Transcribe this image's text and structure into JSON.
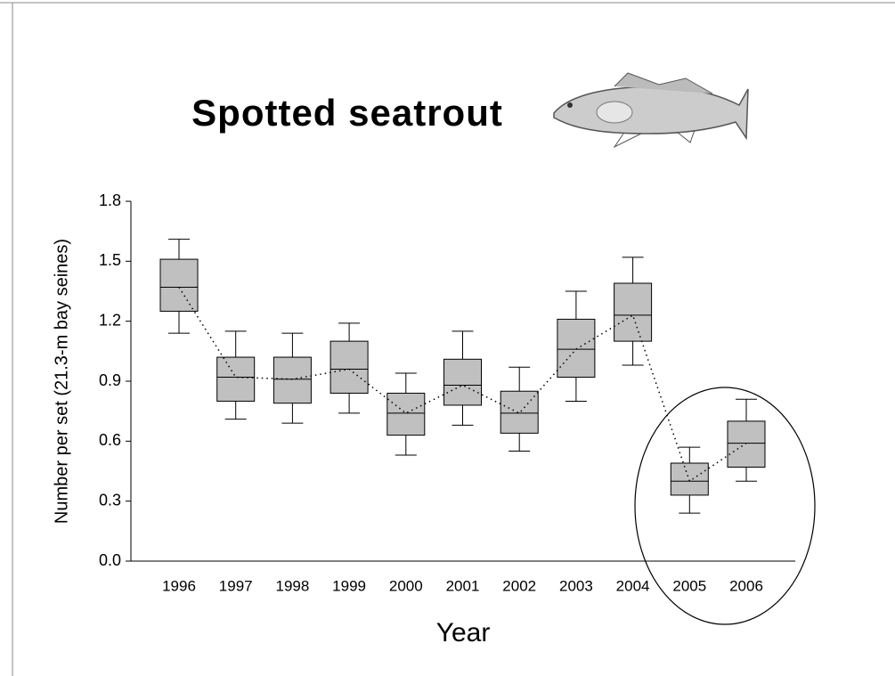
{
  "chart_data": {
    "type": "box",
    "title": "Spotted seatrout",
    "x_label": "Year",
    "y_label": "Number per set (21.3-m bay seines)",
    "categories": [
      "1996",
      "1997",
      "1998",
      "1999",
      "2000",
      "2001",
      "2002",
      "2003",
      "2004",
      "2005",
      "2006"
    ],
    "whisker_low": [
      1.14,
      0.71,
      0.69,
      0.74,
      0.53,
      0.68,
      0.55,
      0.8,
      0.98,
      0.24,
      0.4
    ],
    "q1": [
      1.25,
      0.8,
      0.79,
      0.84,
      0.63,
      0.78,
      0.64,
      0.92,
      1.1,
      0.33,
      0.47
    ],
    "median": [
      1.37,
      0.92,
      0.91,
      0.96,
      0.74,
      0.88,
      0.74,
      1.06,
      1.23,
      0.4,
      0.59
    ],
    "q3": [
      1.51,
      1.02,
      1.02,
      1.1,
      0.84,
      1.01,
      0.85,
      1.21,
      1.39,
      0.49,
      0.7
    ],
    "whisker_high": [
      1.61,
      1.15,
      1.14,
      1.19,
      0.94,
      1.15,
      0.97,
      1.35,
      1.52,
      0.57,
      0.81
    ],
    "color": "#c0c0c0",
    "ylim": [
      0,
      1.8
    ],
    "yticks": [
      {
        "value": 0,
        "label": "0.0"
      },
      0.3,
      0.6,
      0.9,
      1.2,
      1.5,
      1.8
    ]
  }
}
